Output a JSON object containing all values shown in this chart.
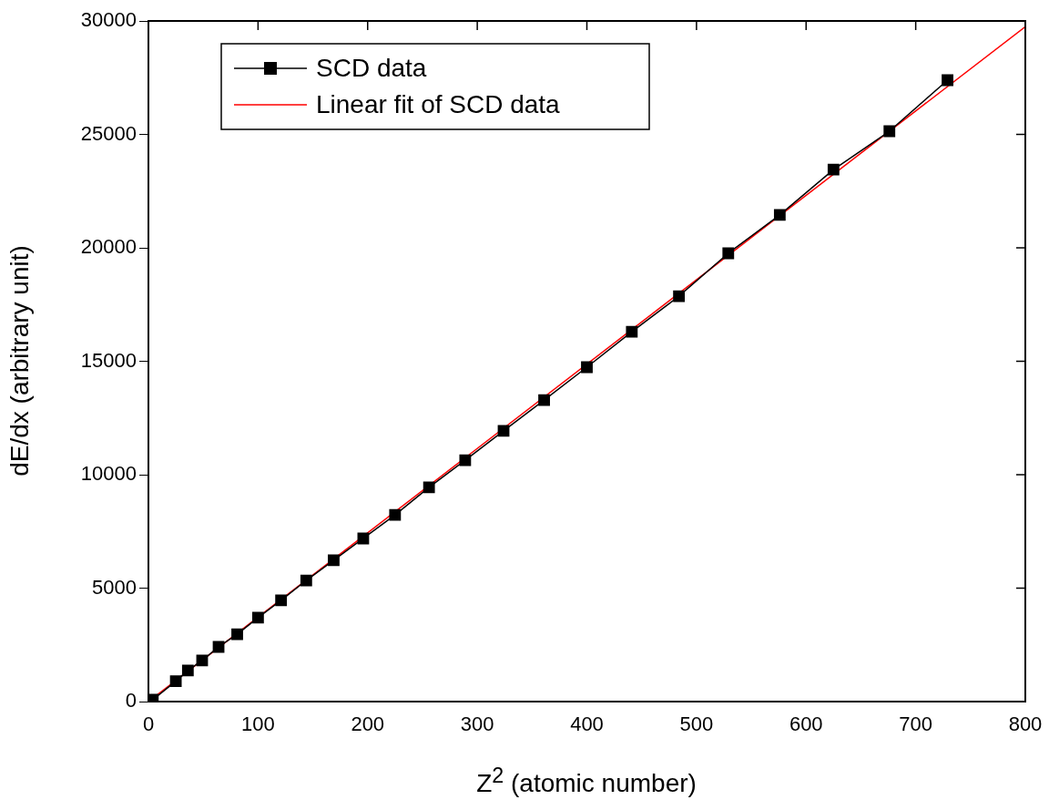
{
  "chart_data": {
    "type": "line",
    "xlabel": "Z$^{2}$ (atomic number)",
    "ylabel": "dE/dx (arbitrary unit)",
    "xlim": [
      0,
      800
    ],
    "xticks": [
      0,
      100,
      200,
      300,
      400,
      500,
      600,
      700,
      800
    ],
    "ylim": [
      0,
      30000
    ],
    "yticks": [
      0,
      5000,
      10000,
      15000,
      20000,
      25000,
      30000
    ],
    "grid": false,
    "legend": "top left",
    "marker": "square",
    "series": [
      {
        "name": "SCD data",
        "color": "#000000",
        "x": [
          4,
          25,
          36,
          49,
          64,
          81,
          100,
          121,
          144,
          169,
          196,
          225,
          256,
          289,
          324,
          361,
          400,
          441,
          484,
          529,
          576,
          625,
          676,
          729
        ],
        "values": [
          80,
          900,
          1370,
          1810,
          2410,
          2970,
          3700,
          4460,
          5340,
          6230,
          7190,
          8230,
          9440,
          10640,
          11930,
          13290,
          14740,
          16300,
          17870,
          19760,
          21450,
          23450,
          25140,
          27390
        ]
      },
      {
        "name": "Linear fit of SCD data",
        "color": "#ff0000",
        "marker": "none",
        "x": [
          0,
          800
        ],
        "values": [
          0,
          29750
        ]
      }
    ]
  }
}
